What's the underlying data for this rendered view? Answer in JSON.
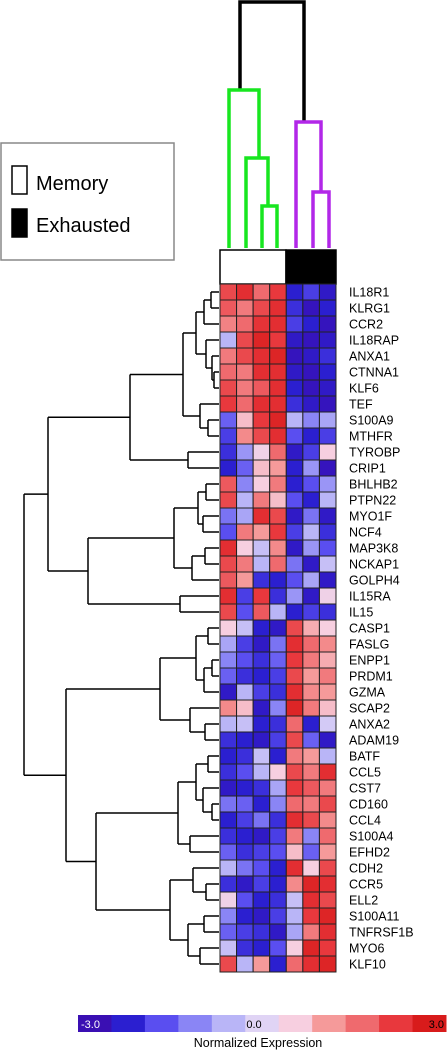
{
  "chart_data": {
    "type": "heatmap",
    "legend": {
      "items": [
        {
          "label": "Memory",
          "color": "#ffffff"
        },
        {
          "label": "Exhausted",
          "color": "#000000"
        }
      ],
      "placement": "left"
    },
    "column_groups": [
      "Memory",
      "Memory",
      "Memory",
      "Memory",
      "Exhausted",
      "Exhausted",
      "Exhausted"
    ],
    "rows": [
      "IL18R1",
      "KLRG1",
      "CCR2",
      "IL18RAP",
      "ANXA1",
      "CTNNA1",
      "KLF6",
      "TEF",
      "S100A9",
      "MTHFR",
      "TYROBP",
      "CRIP1",
      "BHLHB2",
      "PTPN22",
      "MYO1F",
      "NCF4",
      "MAP3K8",
      "NCKAP1",
      "GOLPH4",
      "IL15RA",
      "IL15",
      "CASP1",
      "FASLG",
      "ENPP1",
      "PRDM1",
      "GZMA",
      "SCAP2",
      "ANXA2",
      "ADAM19",
      "BATF",
      "CCL5",
      "CST7",
      "CD160",
      "CCL4",
      "S100A4",
      "EFHD2",
      "CDH2",
      "CCR5",
      "ELL2",
      "S100A11",
      "TNFRSF1B",
      "MYO6",
      "KLF10"
    ],
    "values": [
      [
        2.2,
        2.6,
        1.8,
        2.4,
        -2.4,
        -2.0,
        -2.6
      ],
      [
        2.0,
        1.6,
        2.2,
        2.6,
        -2.2,
        -2.8,
        -2.4
      ],
      [
        1.5,
        1.8,
        2.5,
        2.6,
        -2.0,
        -2.4,
        -2.8
      ],
      [
        -0.6,
        2.2,
        2.8,
        2.4,
        -2.6,
        -2.8,
        -2.6
      ],
      [
        1.6,
        2.2,
        2.6,
        2.8,
        -2.8,
        -2.6,
        -2.2
      ],
      [
        1.8,
        1.6,
        2.6,
        2.6,
        -2.6,
        -2.8,
        -2.4
      ],
      [
        2.2,
        1.6,
        2.0,
        2.6,
        -2.4,
        -2.8,
        -2.6
      ],
      [
        2.4,
        1.8,
        2.6,
        2.6,
        -2.2,
        -2.6,
        -2.8
      ],
      [
        -1.6,
        0.8,
        2.4,
        2.8,
        -0.6,
        -1.2,
        -0.8
      ],
      [
        -2.0,
        1.4,
        2.2,
        2.6,
        -1.8,
        -2.4,
        -2.0
      ],
      [
        -2.2,
        -1.0,
        0.4,
        1.8,
        -2.6,
        -2.0,
        0.6
      ],
      [
        -2.4,
        -1.6,
        0.8,
        1.2,
        -2.4,
        -1.0,
        -2.8
      ],
      [
        2.0,
        -1.2,
        0.6,
        1.6,
        -2.4,
        -1.8,
        -1.0
      ],
      [
        2.2,
        -0.6,
        1.6,
        0.8,
        -1.8,
        -2.4,
        -0.6
      ],
      [
        -1.4,
        -0.8,
        2.6,
        2.2,
        -2.6,
        -1.4,
        -2.6
      ],
      [
        -1.8,
        1.6,
        1.2,
        2.4,
        -2.0,
        -0.6,
        -2.2
      ],
      [
        2.6,
        0.6,
        -0.4,
        1.4,
        -2.6,
        -1.0,
        -1.8
      ],
      [
        2.2,
        1.6,
        -0.6,
        1.8,
        -1.4,
        -2.6,
        -0.4
      ],
      [
        2.0,
        1.2,
        -2.2,
        -2.4,
        -1.8,
        -0.8,
        -2.6
      ],
      [
        2.6,
        -2.0,
        2.4,
        -2.2,
        -1.0,
        -2.6,
        0.4
      ],
      [
        2.2,
        -1.8,
        2.0,
        -0.6,
        -2.4,
        -2.0,
        -2.2
      ],
      [
        0.6,
        -0.4,
        -2.4,
        -2.6,
        2.2,
        1.0,
        0.6
      ],
      [
        -0.8,
        -2.0,
        -2.6,
        -1.4,
        2.6,
        1.8,
        1.4
      ],
      [
        -1.2,
        -1.8,
        -2.2,
        -1.6,
        2.4,
        1.6,
        1.0
      ],
      [
        -1.6,
        -2.2,
        -2.4,
        -2.0,
        2.2,
        1.2,
        1.6
      ],
      [
        -2.6,
        -0.6,
        -2.0,
        -2.2,
        2.6,
        1.4,
        1.2
      ],
      [
        1.4,
        0.8,
        -2.6,
        -1.2,
        2.8,
        1.6,
        0.8
      ],
      [
        -0.6,
        -0.4,
        -2.4,
        -2.2,
        1.8,
        -2.4,
        -0.2
      ],
      [
        -2.2,
        -2.4,
        -2.6,
        -2.0,
        2.2,
        -1.6,
        -2.6
      ],
      [
        -2.4,
        -2.2,
        -0.4,
        -2.4,
        1.6,
        1.2,
        -0.6
      ],
      [
        -2.2,
        -1.8,
        -0.6,
        0.6,
        2.2,
        1.6,
        2.6
      ],
      [
        -2.6,
        -2.4,
        -2.2,
        -0.8,
        2.4,
        2.0,
        1.6
      ],
      [
        -1.4,
        -1.6,
        -2.4,
        -1.2,
        1.8,
        1.6,
        2.2
      ],
      [
        -2.4,
        -2.0,
        -1.4,
        -2.2,
        2.6,
        2.2,
        1.4
      ],
      [
        -2.2,
        -2.4,
        -2.6,
        -2.0,
        1.6,
        -1.2,
        1.8
      ],
      [
        -1.6,
        -2.2,
        -2.0,
        -1.8,
        0.8,
        -1.6,
        1.2
      ],
      [
        -0.6,
        -1.4,
        -1.8,
        -2.4,
        2.6,
        0.6,
        2.2
      ],
      [
        -2.2,
        -2.6,
        -2.0,
        -2.4,
        1.4,
        2.8,
        2.6
      ],
      [
        0.4,
        -1.8,
        -2.4,
        -2.2,
        -0.4,
        2.6,
        2.2
      ],
      [
        -1.2,
        -2.4,
        -2.6,
        -2.0,
        -0.6,
        2.4,
        2.8
      ],
      [
        -1.6,
        -2.0,
        -2.2,
        -2.6,
        -0.8,
        1.6,
        2.6
      ],
      [
        -0.4,
        -2.2,
        -2.4,
        -1.8,
        0.6,
        2.8,
        2.4
      ],
      [
        2.2,
        -0.6,
        1.2,
        -2.4,
        1.8,
        2.6,
        2.8
      ]
    ],
    "color_scale": {
      "min": -3.0,
      "max": 3.0,
      "tick_labels": [
        "-3.0",
        "0.0",
        "3.0"
      ],
      "title": "Normalized Expression",
      "colors": [
        "#3a0fb3",
        "#2b1fd0",
        "#5a4ef0",
        "#8a85f5",
        "#b9b5f7",
        "#e0d4f5",
        "#f7cfe0",
        "#f59a9a",
        "#ef6a6e",
        "#e8383d",
        "#d81b1b"
      ]
    }
  }
}
